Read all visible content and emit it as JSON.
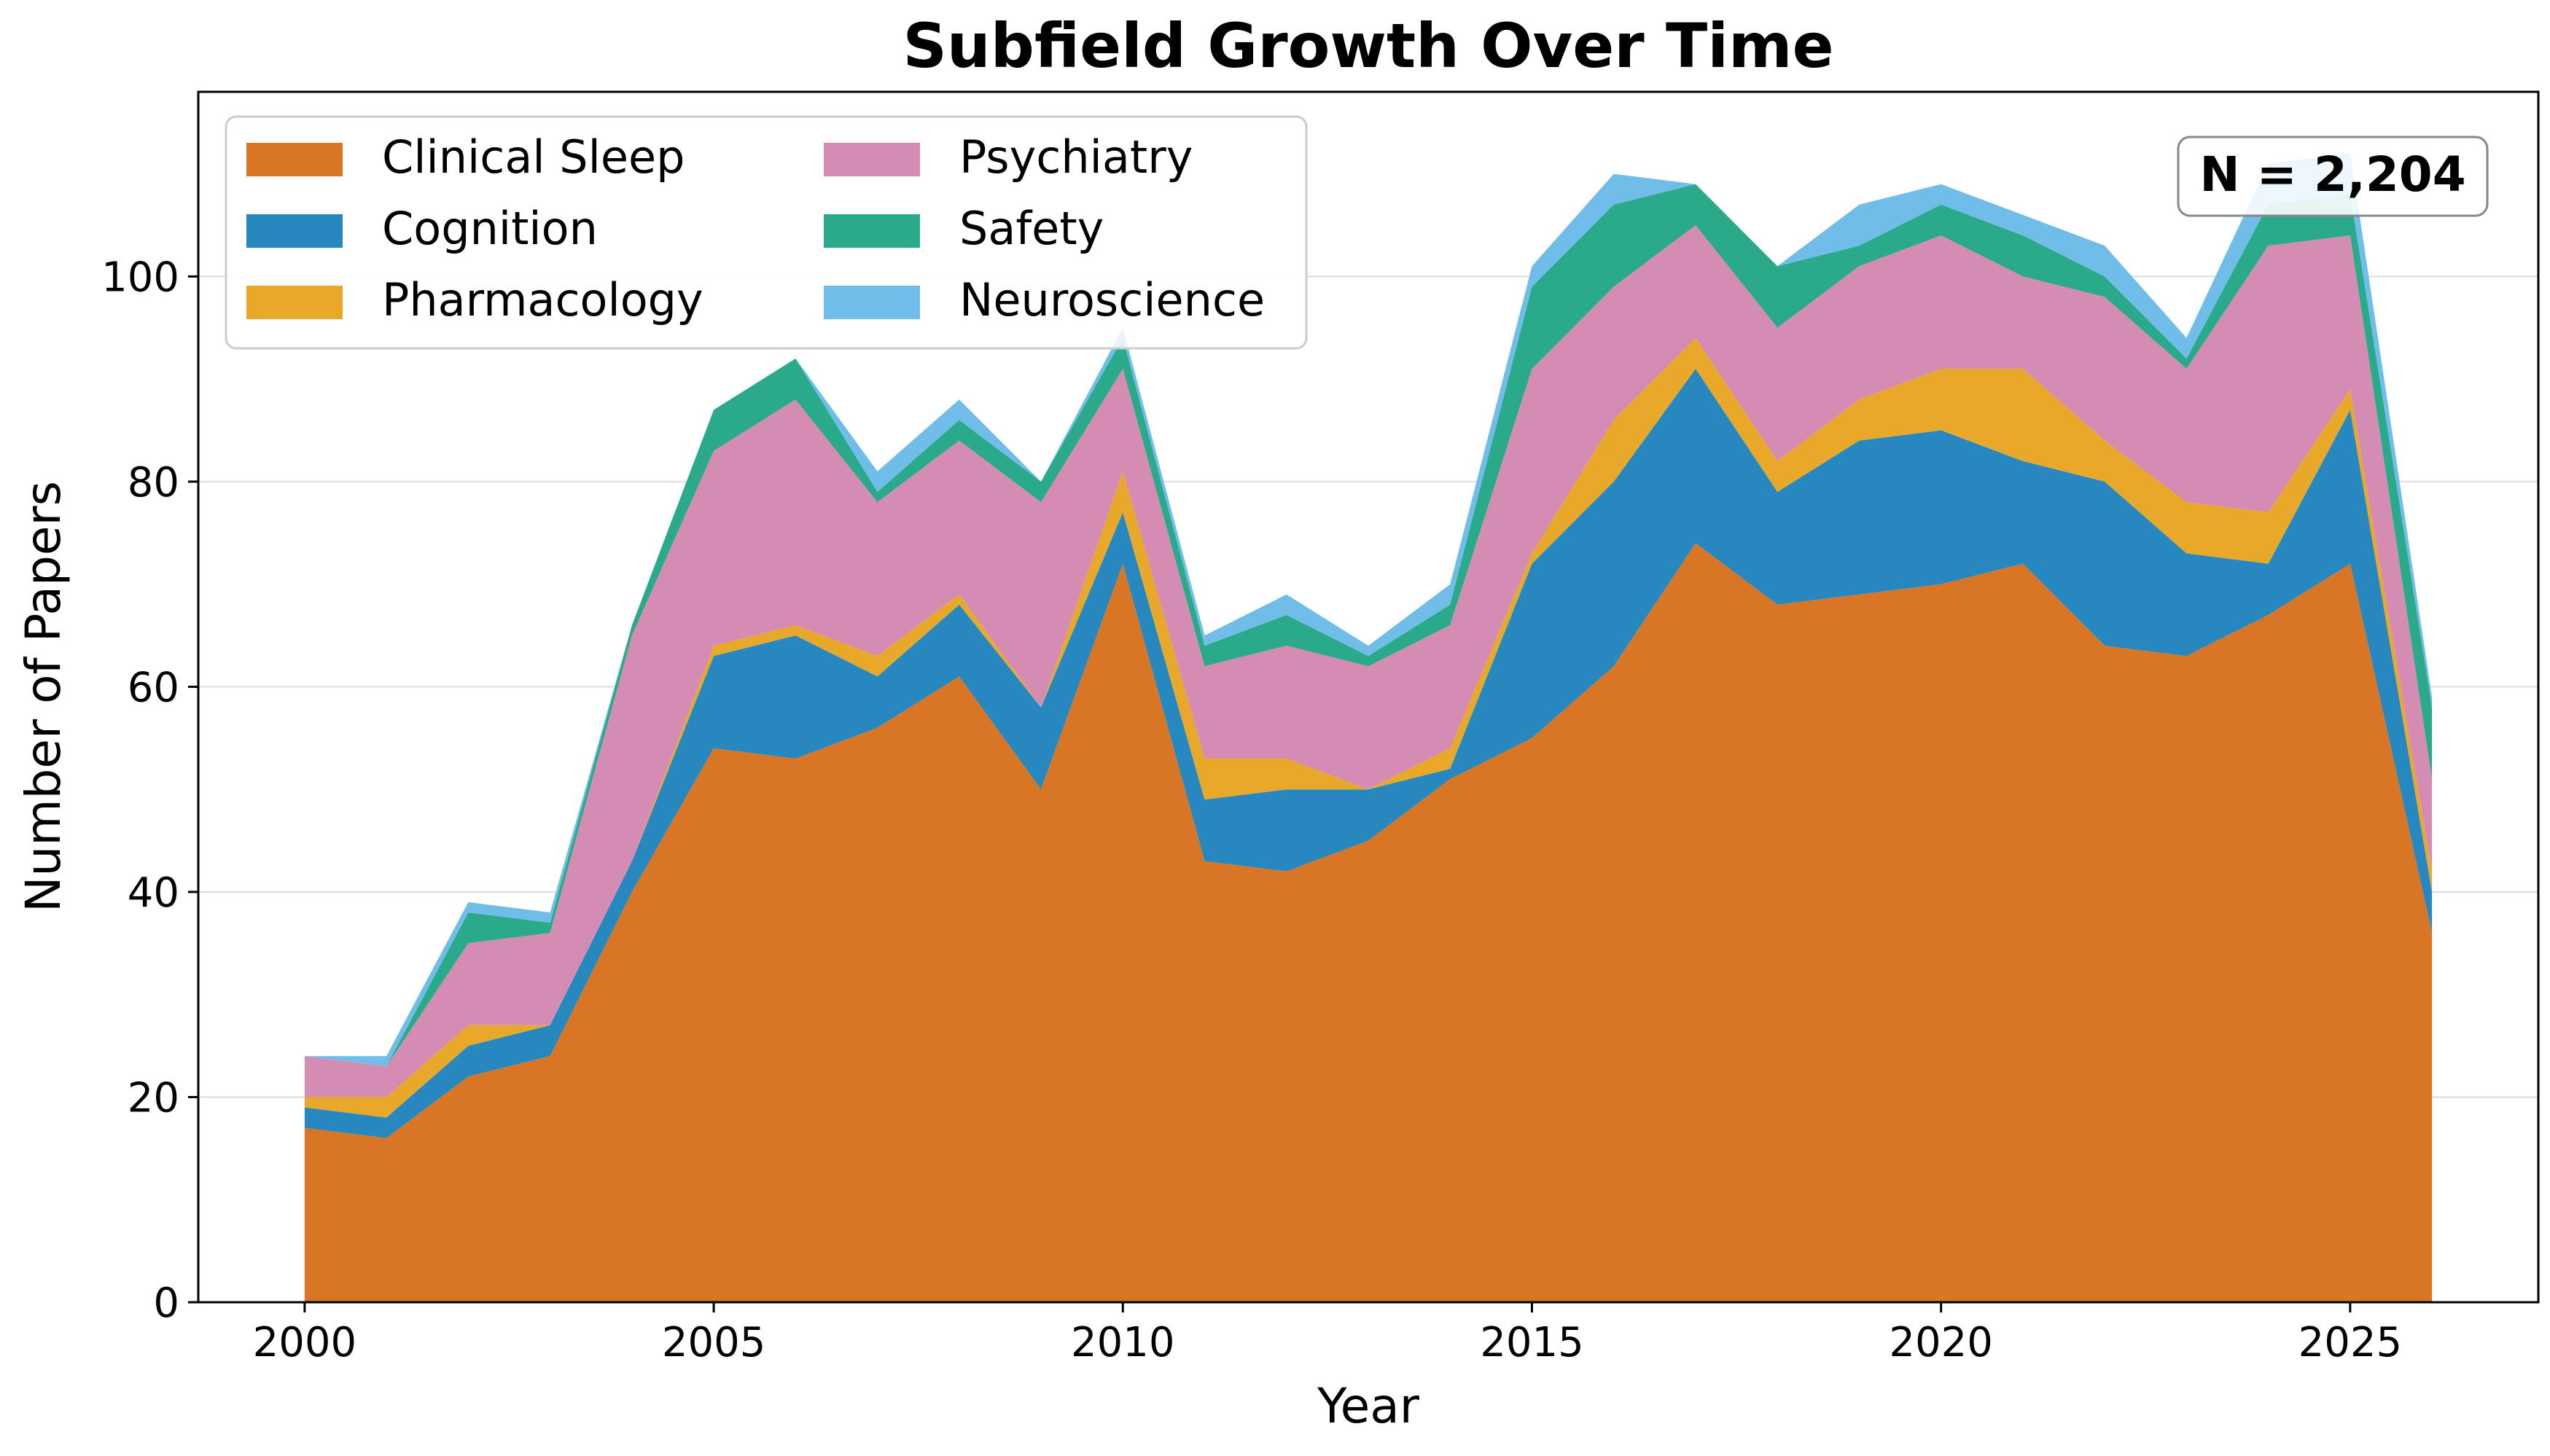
{
  "chart_data": {
    "type": "area",
    "stacked": true,
    "title": "Subfield Growth Over Time",
    "xlabel": "Year",
    "ylabel": "Number of Papers",
    "xlim": [
      1998.7,
      2027.3
    ],
    "ylim": [
      0,
      118
    ],
    "xticks": [
      2000,
      2005,
      2010,
      2015,
      2020,
      2025
    ],
    "yticks": [
      0,
      20,
      40,
      60,
      80,
      100
    ],
    "grid": "horizontal",
    "legend_placement": "top-left",
    "annotation": "N = 2,204",
    "x": [
      2000,
      2001,
      2002,
      2003,
      2004,
      2005,
      2006,
      2007,
      2008,
      2009,
      2010,
      2011,
      2012,
      2013,
      2014,
      2015,
      2016,
      2017,
      2018,
      2019,
      2020,
      2021,
      2022,
      2023,
      2024,
      2025,
      2026
    ],
    "series": [
      {
        "name": "Clinical Sleep",
        "color": "#d97626",
        "values": [
          17,
          16,
          22,
          24,
          40,
          54,
          53,
          56,
          61,
          50,
          72,
          43,
          42,
          45,
          51,
          55,
          62,
          74,
          68,
          69,
          70,
          72,
          64,
          63,
          67,
          72,
          36
        ]
      },
      {
        "name": "Cognition",
        "color": "#2788bf",
        "values": [
          2,
          2,
          3,
          3,
          3,
          9,
          12,
          5,
          7,
          8,
          5,
          6,
          8,
          5,
          1,
          17,
          18,
          17,
          11,
          15,
          15,
          10,
          16,
          10,
          5,
          15,
          4
        ]
      },
      {
        "name": "Pharmacology",
        "color": "#e8a92a",
        "values": [
          1,
          2,
          2,
          0,
          0,
          1,
          1,
          2,
          1,
          0,
          4,
          4,
          3,
          0,
          2,
          1,
          6,
          3,
          3,
          4,
          6,
          9,
          4,
          5,
          5,
          2,
          2
        ]
      },
      {
        "name": "Psychiatry",
        "color": "#d48cb3",
        "values": [
          4,
          3,
          8,
          9,
          22,
          19,
          22,
          15,
          15,
          20,
          10,
          9,
          11,
          12,
          12,
          18,
          13,
          11,
          13,
          13,
          13,
          9,
          14,
          13,
          26,
          15,
          9
        ]
      },
      {
        "name": "Safety",
        "color": "#2aaa8a",
        "values": [
          0,
          0,
          3,
          1,
          1,
          4,
          4,
          1,
          2,
          2,
          3,
          2,
          3,
          1,
          2,
          8,
          8,
          4,
          6,
          2,
          3,
          4,
          2,
          1,
          4,
          4,
          7
        ]
      },
      {
        "name": "Neuroscience",
        "color": "#6fbde8",
        "values": [
          0,
          1,
          1,
          1,
          0,
          0,
          0,
          2,
          2,
          0,
          1,
          1,
          2,
          1,
          2,
          2,
          3,
          0,
          0,
          4,
          2,
          2,
          3,
          2,
          4,
          4,
          1
        ]
      }
    ]
  }
}
